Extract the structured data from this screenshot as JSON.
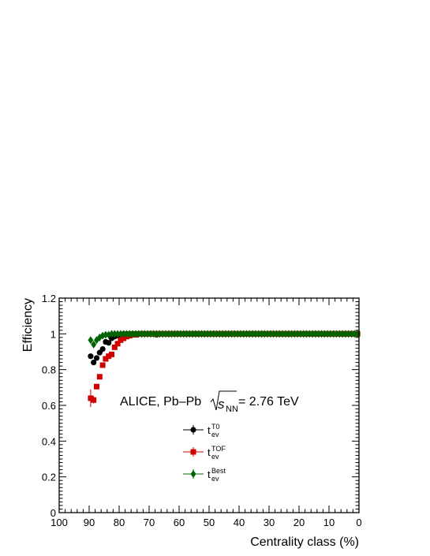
{
  "chart_data": {
    "type": "scatter",
    "xlabel": "Centrality class (%)",
    "ylabel": "Efficiency",
    "xlim": [
      100,
      0
    ],
    "ylim": [
      0,
      1.2
    ],
    "x_reversed": true,
    "x_ticks": [
      "100",
      "90",
      "80",
      "70",
      "60",
      "50",
      "40",
      "30",
      "20",
      "10",
      "0"
    ],
    "y_ticks": [
      "0",
      "0.2",
      "0.4",
      "0.6",
      "0.8",
      "1",
      "1.2"
    ],
    "legend_position": "center-left",
    "annotation": {
      "prefix": "ALICE, Pb–Pb ",
      "sqrt_symbol": "s",
      "sqrt_subscript": "NN",
      "suffix": " = 2.76 TeV"
    },
    "series": [
      {
        "name": "t_ev^T0",
        "legend_base": "t",
        "legend_sub": "ev",
        "legend_sup": "T0",
        "marker": "circle",
        "color": "#000000",
        "x": [
          89.5,
          88.5,
          87.5,
          86.5,
          85.5,
          84.5,
          83.5,
          82.5,
          81.5,
          80.5,
          79.5,
          78.5,
          77.5,
          76.5,
          75.5,
          74.5,
          73.5,
          72.5,
          71.5,
          70.5,
          69.5,
          68.5,
          67.5,
          66.5,
          65.5,
          64.5,
          63.5,
          62.5,
          61.5,
          60.5,
          59.5,
          58.5,
          57.5,
          56.5,
          55.5,
          54.5,
          53.5,
          52.5,
          51.5,
          50.5,
          49.5,
          48.5,
          47.5,
          46.5,
          45.5,
          44.5,
          43.5,
          42.5,
          41.5,
          40.5,
          39.5,
          38.5,
          37.5,
          36.5,
          35.5,
          34.5,
          33.5,
          32.5,
          31.5,
          30.5,
          29.5,
          28.5,
          27.5,
          26.5,
          25.5,
          24.5,
          23.5,
          22.5,
          21.5,
          20.5,
          19.5,
          18.5,
          17.5,
          16.5,
          15.5,
          14.5,
          13.5,
          12.5,
          11.5,
          10.5,
          9.5,
          8.5,
          7.5,
          6.5,
          5.5,
          4.5,
          3.5,
          2.5,
          1.5,
          0.5
        ],
        "y": [
          0.875,
          0.84,
          0.865,
          0.895,
          0.915,
          0.955,
          0.95,
          0.975,
          0.985,
          0.99,
          0.995,
          1.0,
          1.0,
          1.0,
          1.0,
          1.0,
          1.0,
          1.0,
          1.0,
          1.0,
          1.0,
          1.0,
          0.995,
          1.0,
          1.0,
          1.0,
          1.0,
          1.0,
          1.0,
          1.0,
          1.0,
          1.0,
          1.0,
          1.0,
          1.0,
          1.0,
          1.0,
          1.0,
          1.0,
          1.0,
          1.0,
          1.0,
          1.0,
          1.0,
          1.0,
          1.0,
          1.0,
          1.0,
          1.0,
          1.0,
          1.0,
          1.0,
          1.0,
          1.0,
          1.0,
          1.0,
          1.0,
          1.0,
          1.0,
          1.0,
          1.0,
          1.0,
          1.0,
          1.0,
          1.0,
          1.0,
          1.0,
          1.0,
          1.0,
          1.0,
          1.0,
          1.0,
          1.0,
          1.0,
          1.0,
          1.0,
          1.0,
          1.0,
          1.0,
          1.0,
          1.0,
          1.0,
          1.0,
          1.0,
          1.0,
          1.0,
          1.0,
          1.0,
          1.0,
          1.0
        ],
        "y_err": [
          0.015,
          0.012,
          0.01,
          0.008,
          0.007,
          0.006,
          0.005,
          0.004,
          0.003,
          0.003,
          0.002,
          0.002,
          0.002,
          0.002,
          0.002,
          0.002,
          0.002,
          0.002,
          0.002,
          0.002,
          0.002,
          0.002,
          0.002,
          0.002,
          0.002,
          0.002,
          0.002,
          0.002,
          0.002,
          0.002,
          0.002,
          0.002,
          0.002,
          0.002,
          0.002,
          0.002,
          0.002,
          0.002,
          0.002,
          0.002,
          0.002,
          0.002,
          0.002,
          0.002,
          0.002,
          0.002,
          0.002,
          0.002,
          0.002,
          0.002,
          0.002,
          0.002,
          0.002,
          0.002,
          0.002,
          0.002,
          0.002,
          0.002,
          0.002,
          0.002,
          0.002,
          0.002,
          0.002,
          0.002,
          0.002,
          0.002,
          0.002,
          0.002,
          0.002,
          0.002,
          0.002,
          0.002,
          0.002,
          0.002,
          0.002,
          0.002,
          0.002,
          0.002,
          0.002,
          0.002,
          0.002,
          0.002,
          0.002,
          0.002,
          0.002,
          0.002,
          0.002,
          0.002,
          0.002,
          0.002
        ]
      },
      {
        "name": "t_ev^TOF",
        "legend_base": "t",
        "legend_sub": "ev",
        "legend_sup": "TOF",
        "marker": "square",
        "color": "#d00000",
        "x": [
          89.5,
          88.5,
          87.5,
          86.5,
          85.5,
          84.5,
          83.5,
          82.5,
          81.5,
          80.5,
          79.5,
          78.5,
          77.5,
          76.5,
          75.5,
          74.5,
          73.5,
          72.5,
          71.5,
          70.5,
          69.5,
          68.5,
          67.5,
          66.5,
          65.5,
          64.5,
          63.5,
          62.5,
          61.5,
          60.5,
          59.5,
          58.5,
          57.5,
          56.5,
          55.5,
          54.5,
          53.5,
          52.5,
          51.5,
          50.5,
          49.5,
          48.5,
          47.5,
          46.5,
          45.5,
          44.5,
          43.5,
          42.5,
          41.5,
          40.5,
          39.5,
          38.5,
          37.5,
          36.5,
          35.5,
          34.5,
          33.5,
          32.5,
          31.5,
          30.5,
          29.5,
          28.5,
          27.5,
          26.5,
          25.5,
          24.5,
          23.5,
          22.5,
          21.5,
          20.5,
          19.5,
          18.5,
          17.5,
          16.5,
          15.5,
          14.5,
          13.5,
          12.5,
          11.5,
          10.5,
          9.5,
          8.5,
          7.5,
          6.5,
          5.5,
          4.5,
          3.5,
          2.5,
          1.5,
          0.5
        ],
        "y": [
          0.64,
          0.63,
          0.705,
          0.76,
          0.825,
          0.86,
          0.875,
          0.885,
          0.925,
          0.945,
          0.965,
          0.975,
          0.985,
          0.99,
          0.995,
          0.995,
          1.0,
          1.0,
          1.0,
          1.0,
          1.0,
          1.0,
          1.0,
          1.0,
          1.0,
          1.0,
          1.0,
          1.0,
          1.0,
          1.0,
          1.0,
          1.0,
          1.0,
          1.0,
          1.0,
          1.0,
          1.0,
          1.0,
          1.0,
          1.0,
          1.0,
          1.0,
          1.0,
          1.0,
          1.0,
          1.0,
          1.0,
          1.0,
          1.0,
          1.0,
          1.0,
          1.0,
          1.0,
          1.0,
          1.0,
          1.0,
          1.0,
          1.0,
          1.0,
          1.0,
          1.0,
          1.0,
          1.0,
          1.0,
          1.0,
          1.0,
          1.0,
          1.0,
          1.0,
          1.0,
          1.0,
          1.0,
          1.0,
          1.0,
          1.0,
          1.0,
          1.0,
          1.0,
          1.0,
          1.0,
          1.0,
          1.0,
          1.0,
          1.0,
          1.0,
          1.0,
          1.0,
          1.0,
          1.0,
          1.0
        ],
        "y_err": [
          0.05,
          0.02,
          0.015,
          0.012,
          0.01,
          0.008,
          0.007,
          0.006,
          0.005,
          0.004,
          0.003,
          0.003,
          0.002,
          0.002,
          0.002,
          0.002,
          0.002,
          0.002,
          0.002,
          0.002,
          0.002,
          0.002,
          0.002,
          0.002,
          0.002,
          0.002,
          0.002,
          0.002,
          0.002,
          0.002,
          0.002,
          0.002,
          0.002,
          0.002,
          0.002,
          0.002,
          0.002,
          0.002,
          0.002,
          0.002,
          0.002,
          0.002,
          0.002,
          0.002,
          0.002,
          0.002,
          0.002,
          0.002,
          0.002,
          0.002,
          0.002,
          0.002,
          0.002,
          0.002,
          0.002,
          0.002,
          0.002,
          0.002,
          0.002,
          0.002,
          0.002,
          0.002,
          0.002,
          0.002,
          0.002,
          0.002,
          0.002,
          0.002,
          0.002,
          0.002,
          0.002,
          0.002,
          0.002,
          0.002,
          0.002,
          0.002,
          0.002,
          0.002,
          0.002,
          0.002,
          0.002,
          0.002,
          0.002,
          0.002,
          0.002,
          0.002,
          0.002,
          0.002,
          0.002,
          0.002
        ]
      },
      {
        "name": "t_ev^Best",
        "legend_base": "t",
        "legend_sub": "ev",
        "legend_sup": "Best",
        "marker": "diamond",
        "color": "#006400",
        "x": [
          89.5,
          88.5,
          87.5,
          86.5,
          85.5,
          84.5,
          83.5,
          82.5,
          81.5,
          80.5,
          79.5,
          78.5,
          77.5,
          76.5,
          75.5,
          74.5,
          73.5,
          72.5,
          71.5,
          70.5,
          69.5,
          68.5,
          67.5,
          66.5,
          65.5,
          64.5,
          63.5,
          62.5,
          61.5,
          60.5,
          59.5,
          58.5,
          57.5,
          56.5,
          55.5,
          54.5,
          53.5,
          52.5,
          51.5,
          50.5,
          49.5,
          48.5,
          47.5,
          46.5,
          45.5,
          44.5,
          43.5,
          42.5,
          41.5,
          40.5,
          39.5,
          38.5,
          37.5,
          36.5,
          35.5,
          34.5,
          33.5,
          32.5,
          31.5,
          30.5,
          29.5,
          28.5,
          27.5,
          26.5,
          25.5,
          24.5,
          23.5,
          22.5,
          21.5,
          20.5,
          19.5,
          18.5,
          17.5,
          16.5,
          15.5,
          14.5,
          13.5,
          12.5,
          11.5,
          10.5,
          9.5,
          8.5,
          7.5,
          6.5,
          5.5,
          4.5,
          3.5,
          2.5,
          1.5,
          0.5
        ],
        "y": [
          0.965,
          0.94,
          0.965,
          0.98,
          0.99,
          0.995,
          0.995,
          1.0,
          1.0,
          1.0,
          1.0,
          1.0,
          1.0,
          1.0,
          1.0,
          1.0,
          1.0,
          1.0,
          1.0,
          1.0,
          1.0,
          1.0,
          1.0,
          1.0,
          1.0,
          1.0,
          1.0,
          1.0,
          1.0,
          1.0,
          1.0,
          1.0,
          1.0,
          1.0,
          1.0,
          1.0,
          1.0,
          1.0,
          1.0,
          1.0,
          1.0,
          1.0,
          1.0,
          1.0,
          1.0,
          1.0,
          1.0,
          1.0,
          1.0,
          1.0,
          1.0,
          1.0,
          1.0,
          1.0,
          1.0,
          1.0,
          1.0,
          1.0,
          1.0,
          1.0,
          1.0,
          1.0,
          1.0,
          1.0,
          1.0,
          1.0,
          1.0,
          1.0,
          1.0,
          1.0,
          1.0,
          1.0,
          1.0,
          1.0,
          1.0,
          1.0,
          1.0,
          1.0,
          1.0,
          1.0,
          1.0,
          1.0,
          1.0,
          1.0,
          1.0,
          1.0,
          1.0,
          1.0,
          1.0,
          1.0
        ],
        "y_err": [
          0.01,
          0.008,
          0.006,
          0.005,
          0.004,
          0.003,
          0.003,
          0.002,
          0.002,
          0.002,
          0.002,
          0.002,
          0.002,
          0.002,
          0.002,
          0.002,
          0.002,
          0.002,
          0.002,
          0.002,
          0.002,
          0.002,
          0.002,
          0.002,
          0.002,
          0.002,
          0.002,
          0.002,
          0.002,
          0.002,
          0.002,
          0.002,
          0.002,
          0.002,
          0.002,
          0.002,
          0.002,
          0.002,
          0.002,
          0.002,
          0.002,
          0.002,
          0.002,
          0.002,
          0.002,
          0.002,
          0.002,
          0.002,
          0.002,
          0.002,
          0.002,
          0.002,
          0.002,
          0.002,
          0.002,
          0.002,
          0.002,
          0.002,
          0.002,
          0.002,
          0.002,
          0.002,
          0.002,
          0.002,
          0.002,
          0.002,
          0.002,
          0.002,
          0.002,
          0.002,
          0.002,
          0.002,
          0.002,
          0.002,
          0.002,
          0.002,
          0.002,
          0.002,
          0.002,
          0.002,
          0.002,
          0.002,
          0.002,
          0.002,
          0.002,
          0.002,
          0.002,
          0.002,
          0.002,
          0.002
        ]
      }
    ]
  }
}
